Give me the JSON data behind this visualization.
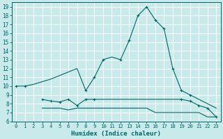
{
  "title": "",
  "xlabel": "Humidex (Indice chaleur)",
  "ylabel": "",
  "background_color": "#c8eaea",
  "grid_color": "#ffffff",
  "line_color": "#006666",
  "xlim": [
    -0.5,
    23.5
  ],
  "ylim": [
    6,
    19.5
  ],
  "yticks": [
    6,
    7,
    8,
    9,
    10,
    11,
    12,
    13,
    14,
    15,
    16,
    17,
    18,
    19
  ],
  "xticks": [
    0,
    1,
    2,
    3,
    4,
    5,
    6,
    7,
    8,
    9,
    10,
    11,
    12,
    13,
    14,
    15,
    16,
    17,
    18,
    19,
    20,
    21,
    22,
    23
  ],
  "series1_x": [
    0,
    1,
    2,
    3,
    4,
    5,
    6,
    7,
    8,
    9,
    10,
    11,
    12,
    13,
    14,
    15,
    16,
    17,
    18,
    19,
    20,
    21,
    22,
    23
  ],
  "series1_y": [
    10,
    10,
    10.2,
    10.5,
    10.8,
    11.2,
    11.6,
    12.0,
    9.5,
    11.0,
    13.0,
    13.3,
    13.0,
    15.2,
    18.0,
    19.0,
    17.5,
    16.5,
    12.0,
    9.5,
    9.0,
    8.5,
    8.0,
    7.5
  ],
  "series1_markers_x": [
    0,
    1,
    8,
    9,
    10,
    12,
    13,
    14,
    15,
    16,
    17,
    18,
    19,
    20
  ],
  "series1_markers_y": [
    10,
    10,
    9.5,
    11.0,
    13.0,
    13.0,
    15.2,
    18.0,
    19.0,
    17.5,
    16.5,
    12.0,
    9.5,
    9.0
  ],
  "series2_x": [
    3,
    4,
    5,
    6,
    7,
    8,
    9,
    10,
    11,
    12,
    13,
    14,
    15,
    16,
    17,
    18,
    19,
    20,
    21,
    22,
    23
  ],
  "series2_y": [
    8.5,
    8.3,
    8.2,
    8.5,
    7.8,
    8.5,
    8.5,
    8.5,
    8.5,
    8.5,
    8.5,
    8.5,
    8.5,
    8.5,
    8.5,
    8.5,
    8.5,
    8.3,
    7.8,
    7.5,
    6.5
  ],
  "series2_markers_x": [
    3,
    4,
    5,
    6,
    7,
    8,
    9,
    19,
    20,
    21,
    22,
    23
  ],
  "series2_markers_y": [
    8.5,
    8.3,
    8.2,
    8.5,
    7.8,
    8.5,
    8.5,
    8.5,
    8.3,
    7.8,
    7.5,
    6.5
  ],
  "series3_x": [
    3,
    4,
    5,
    6,
    7,
    8,
    9,
    10,
    11,
    12,
    13,
    14,
    15,
    16,
    17,
    18,
    19,
    20,
    21,
    22,
    23
  ],
  "series3_y": [
    7.5,
    7.5,
    7.5,
    7.3,
    7.5,
    7.5,
    7.5,
    7.5,
    7.5,
    7.5,
    7.5,
    7.5,
    7.5,
    7.0,
    7.0,
    7.0,
    7.0,
    7.0,
    7.0,
    6.5,
    6.5
  ]
}
